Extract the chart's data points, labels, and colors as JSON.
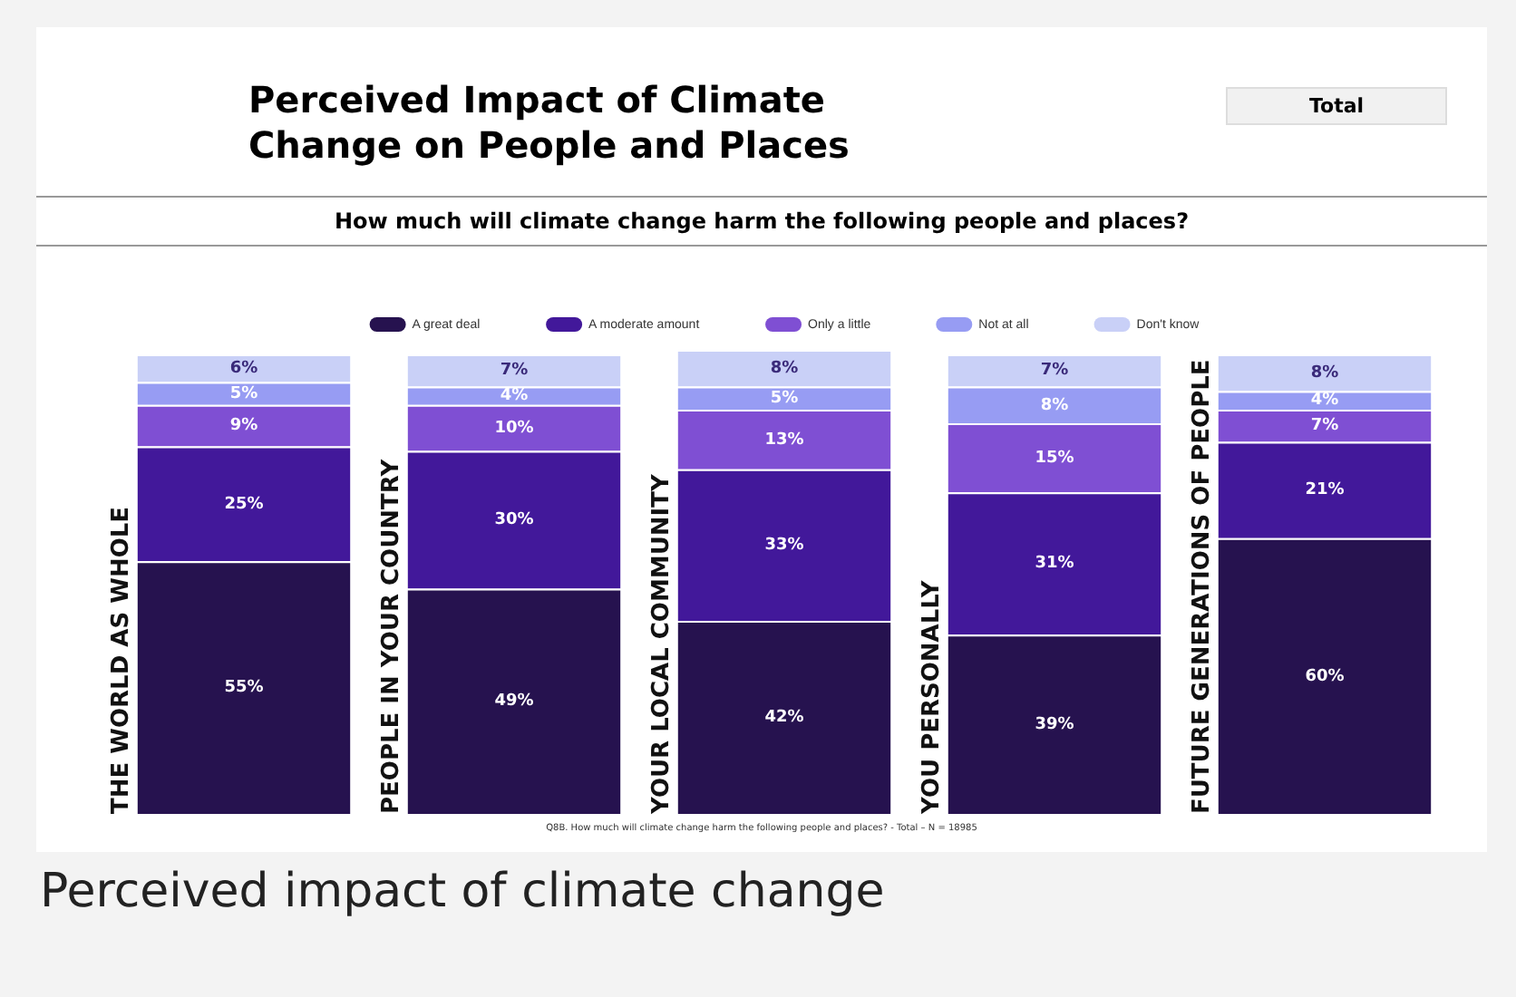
{
  "chart_data": {
    "type": "bar",
    "stacked": true,
    "title": "Perceived Impact of Climate Change on People and Places",
    "subtitle": "How much will climate change harm the following people and places?",
    "categories": [
      "THE WORLD AS WHOLE",
      "PEOPLE IN YOUR COUNTRY",
      "YOUR LOCAL COMMUNITY",
      "YOU PERSONALLY",
      "FUTURE GENERATIONS OF PEOPLE"
    ],
    "series": [
      {
        "name": "A great deal",
        "color": "#26124f",
        "values": [
          55,
          49,
          42,
          39,
          60
        ],
        "value_labels": [
          "55%",
          "49%",
          "42%",
          "39%",
          "60%"
        ]
      },
      {
        "name": "A moderate amount",
        "color": "#42189a",
        "values": [
          25,
          30,
          33,
          31,
          21
        ],
        "value_labels": [
          "25%",
          "30%",
          "33%",
          "31%",
          "21%"
        ]
      },
      {
        "name": "Only a little",
        "color": "#7f4fd3",
        "values": [
          9,
          10,
          13,
          15,
          7
        ],
        "value_labels": [
          "9%",
          "10%",
          "13%",
          "15%",
          "7%"
        ]
      },
      {
        "name": "Not at all",
        "color": "#979cf3",
        "values": [
          5,
          4,
          5,
          8,
          4
        ],
        "value_labels": [
          "5%",
          "4%",
          "5%",
          "8%",
          "4%"
        ]
      },
      {
        "name": "Don't know",
        "color": "#c9d0f7",
        "values": [
          6,
          7,
          8,
          7,
          8
        ],
        "value_labels": [
          "6%",
          "7%",
          "8%",
          "7%",
          "8%"
        ]
      }
    ],
    "legend": "top",
    "grid": false,
    "annotations": [
      "Total",
      "Q8B. How much will climate change harm the following people and places? -  Total – N = 18985",
      "Perceived impact of climate change"
    ]
  }
}
